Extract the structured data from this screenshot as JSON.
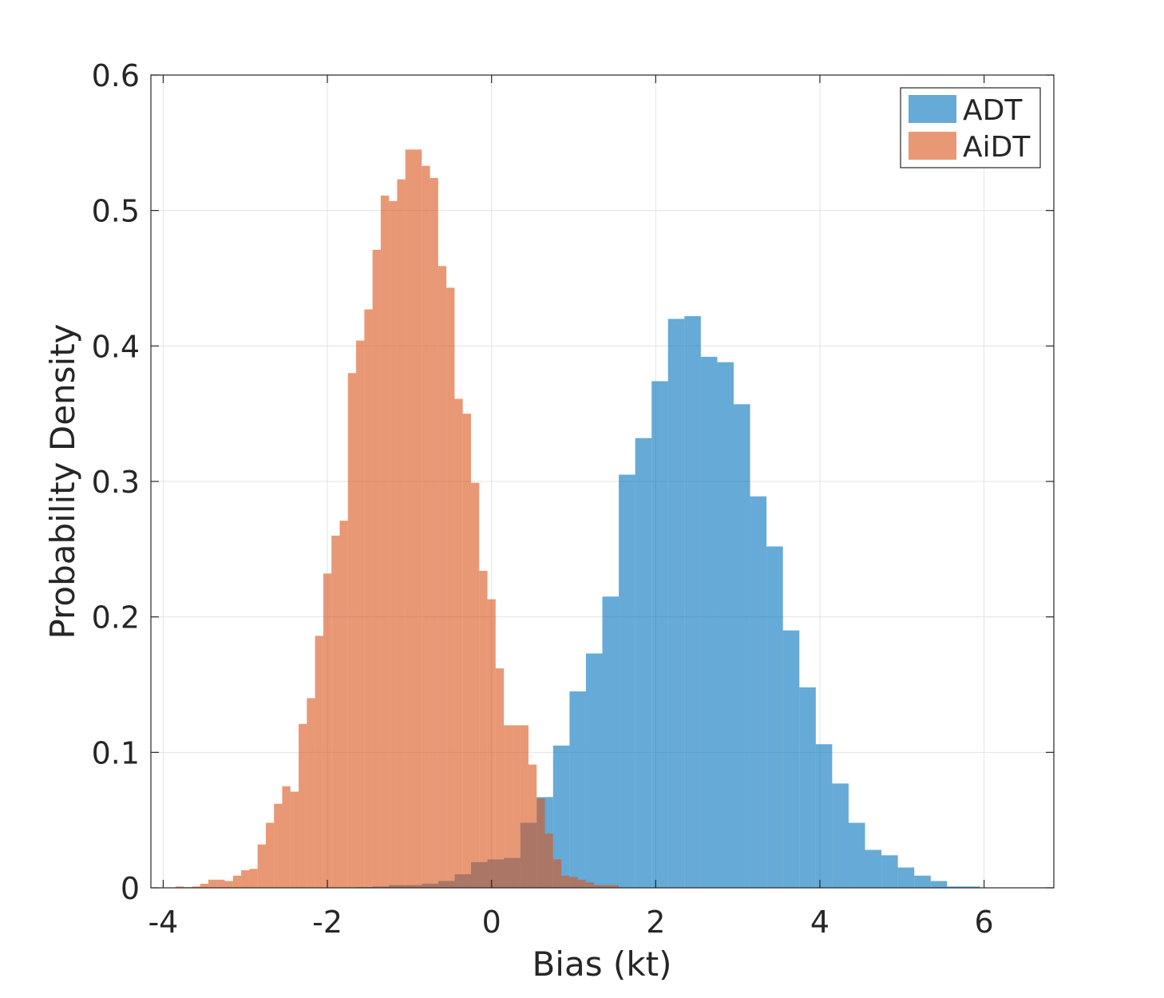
{
  "chart_data": {
    "type": "bar",
    "subtype": "overlapping-histogram",
    "xlabel": "Bias (kt)",
    "ylabel": "Probability Density",
    "xlim": [
      -4.15,
      6.85
    ],
    "ylim": [
      0,
      0.6
    ],
    "xticks": [
      -4,
      -2,
      0,
      2,
      4,
      6
    ],
    "yticks": [
      0,
      0.1,
      0.2,
      0.3,
      0.4,
      0.5,
      0.6
    ],
    "xtick_labels": [
      "-4",
      "-2",
      "0",
      "2",
      "4",
      "6"
    ],
    "ytick_labels": [
      "0",
      "0.1",
      "0.2",
      "0.3",
      "0.4",
      "0.5",
      "0.6"
    ],
    "grid": true,
    "legend_position": "top-right",
    "series": [
      {
        "name": "ADT",
        "color": "#0072BD",
        "face_alpha": 0.6,
        "bin_start": -1.65,
        "bin_width": 0.2,
        "values": [
          0.0005,
          0.001,
          0.002,
          0.002,
          0.003,
          0.005,
          0.01,
          0.019,
          0.021,
          0.022,
          0.048,
          0.067,
          0.105,
          0.145,
          0.173,
          0.215,
          0.305,
          0.332,
          0.374,
          0.42,
          0.422,
          0.392,
          0.388,
          0.357,
          0.289,
          0.252,
          0.19,
          0.148,
          0.106,
          0.077,
          0.048,
          0.028,
          0.024,
          0.015,
          0.009,
          0.005,
          0.001,
          0.001
        ]
      },
      {
        "name": "AiDT",
        "color": "#D95319",
        "face_alpha": 0.6,
        "bin_start": -3.85,
        "bin_width": 0.1,
        "values": [
          0.001,
          0.0005,
          0.001,
          0.003,
          0.006,
          0.006,
          0.005,
          0.009,
          0.013,
          0.014,
          0.032,
          0.048,
          0.062,
          0.075,
          0.071,
          0.121,
          0.14,
          0.186,
          0.232,
          0.26,
          0.271,
          0.38,
          0.404,
          0.427,
          0.471,
          0.511,
          0.507,
          0.523,
          0.545,
          0.545,
          0.533,
          0.524,
          0.459,
          0.443,
          0.361,
          0.35,
          0.299,
          0.234,
          0.213,
          0.162,
          0.12,
          0.12,
          0.12,
          0.091,
          0.066,
          0.04,
          0.021,
          0.009,
          0.008,
          0.006,
          0.004,
          0.002,
          0.002,
          0.002
        ]
      }
    ]
  }
}
